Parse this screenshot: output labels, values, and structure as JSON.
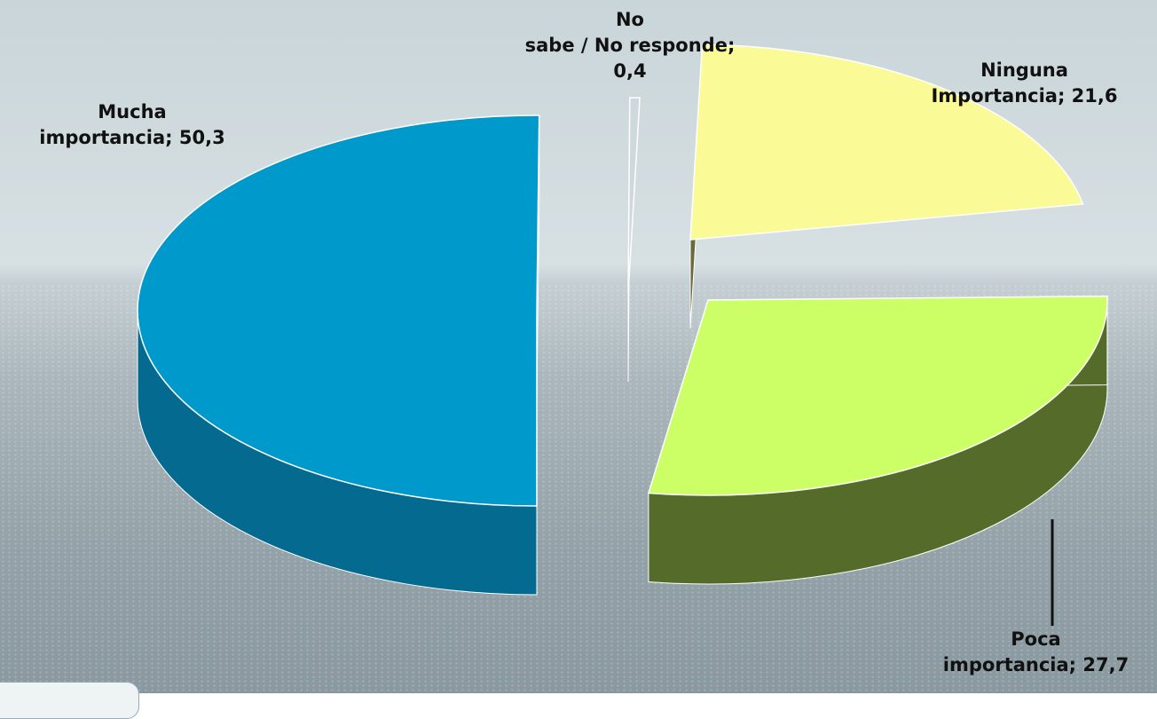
{
  "chart_data": {
    "type": "pie",
    "slices": [
      {
        "label": "Mucha importancia; 50,3",
        "value": 50.3,
        "color": "#0099cc",
        "side_color": "#046a90"
      },
      {
        "label": "No sabe / No responde; 0,4",
        "value": 0.4,
        "color": "#cfd8dc",
        "side_color": "#8d979b"
      },
      {
        "label": "Ninguna Importancia; 21,6",
        "value": 21.6,
        "color": "#fafa96",
        "side_color": "#6b6a3f"
      },
      {
        "label": "Poca importancia; 27,7",
        "value": 27.7,
        "color": "#ccff66",
        "side_color": "#556b2a"
      }
    ]
  }
}
